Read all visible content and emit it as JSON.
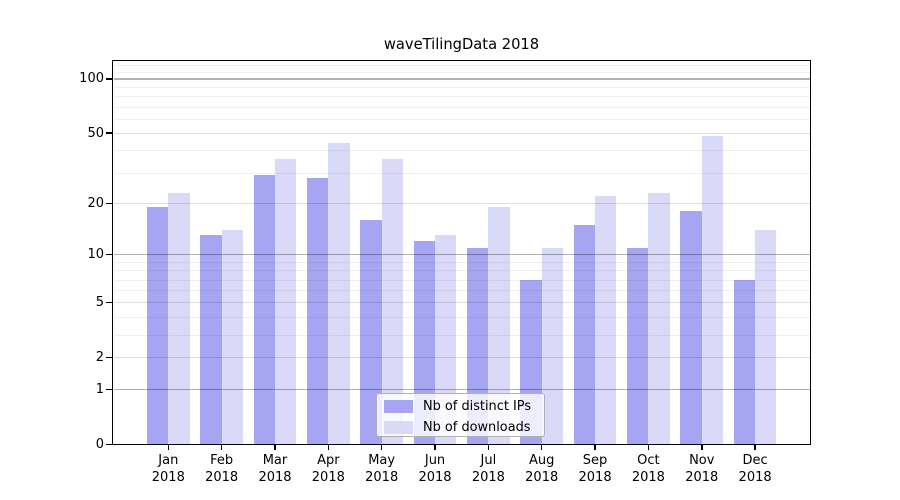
{
  "title": "waveTilingData 2018",
  "chart_data": {
    "type": "bar",
    "title": "waveTilingData 2018",
    "categories": [
      "Jan",
      "Feb",
      "Mar",
      "Apr",
      "May",
      "Jun",
      "Jul",
      "Aug",
      "Sep",
      "Oct",
      "Nov",
      "Dec"
    ],
    "category_year": "2018",
    "series": [
      {
        "name": "Nb of distinct IPs",
        "color": "#a5a5f2",
        "values": [
          19,
          13,
          29,
          28,
          16,
          12,
          11,
          7,
          15,
          11,
          18,
          7
        ]
      },
      {
        "name": "Nb of downloads",
        "color": "#dadaf8",
        "values": [
          23,
          14,
          36,
          44,
          36,
          13,
          19,
          11,
          22,
          23,
          48,
          14
        ]
      }
    ],
    "xlabel": "",
    "ylabel": "",
    "yscale": "log1p",
    "ylim": [
      0,
      127
    ],
    "y_ticks": [
      0,
      1,
      2,
      5,
      10,
      20,
      50,
      100
    ],
    "y_decade_ticks": [
      1,
      10,
      100
    ],
    "y_minor_ticks": [
      3,
      4,
      6,
      7,
      8,
      9,
      30,
      40,
      60,
      70,
      80,
      90,
      110,
      120
    ],
    "grid": "on",
    "legend_position": "inside lower center",
    "background_color": "#ffffff",
    "axis_color": "#000000"
  }
}
